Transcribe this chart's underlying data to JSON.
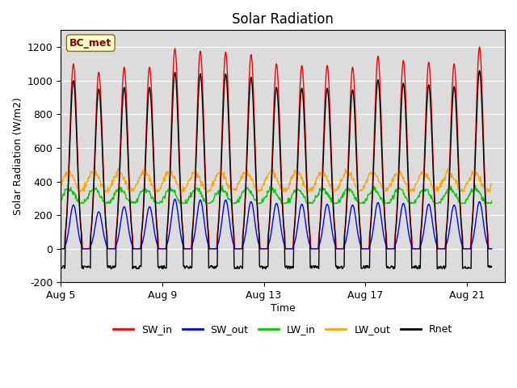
{
  "title": "Solar Radiation",
  "ylabel": "Solar Radiation (W/m2)",
  "xlabel": "Time",
  "ylim": [
    -200,
    1300
  ],
  "yticks": [
    -200,
    0,
    200,
    400,
    600,
    800,
    1000,
    1200
  ],
  "xlim_days": [
    0,
    17.5
  ],
  "xtick_positions": [
    0,
    4,
    8,
    12,
    16
  ],
  "xtick_labels": [
    "Aug 5",
    "Aug 9",
    "Aug 13",
    "Aug 17",
    "Aug 21"
  ],
  "station_label": "BC_met",
  "legend_entries": [
    {
      "label": "SW_in",
      "color": "#FF0000",
      "lw": 1.5
    },
    {
      "label": "SW_out",
      "color": "#0000FF",
      "lw": 1.5
    },
    {
      "label": "LW_in",
      "color": "#00CC00",
      "lw": 1.5
    },
    {
      "label": "LW_out",
      "color": "#FFA500",
      "lw": 1.5
    },
    {
      "label": "Rnet",
      "color": "#000000",
      "lw": 1.5
    }
  ],
  "n_days": 17,
  "sw_in_peaks": [
    1100,
    1050,
    1080,
    1080,
    1190,
    1175,
    1170,
    1155,
    1100,
    1090,
    1090,
    1080,
    1145,
    1120,
    1110,
    1100,
    1200
  ],
  "sw_out_peaks": [
    260,
    220,
    250,
    250,
    295,
    290,
    290,
    280,
    270,
    265,
    265,
    260,
    275,
    270,
    265,
    260,
    280
  ],
  "lw_in_base": 310,
  "lw_in_amp": 45,
  "lw_out_base": 400,
  "lw_out_amp": 55,
  "rnet_day_peaks": [
    1000,
    950,
    960,
    960,
    1050,
    1040,
    1040,
    1020,
    960,
    955,
    955,
    945,
    1005,
    985,
    975,
    965,
    1060
  ],
  "rnet_night": -100,
  "plot_bg_color": "#DCDCDC"
}
